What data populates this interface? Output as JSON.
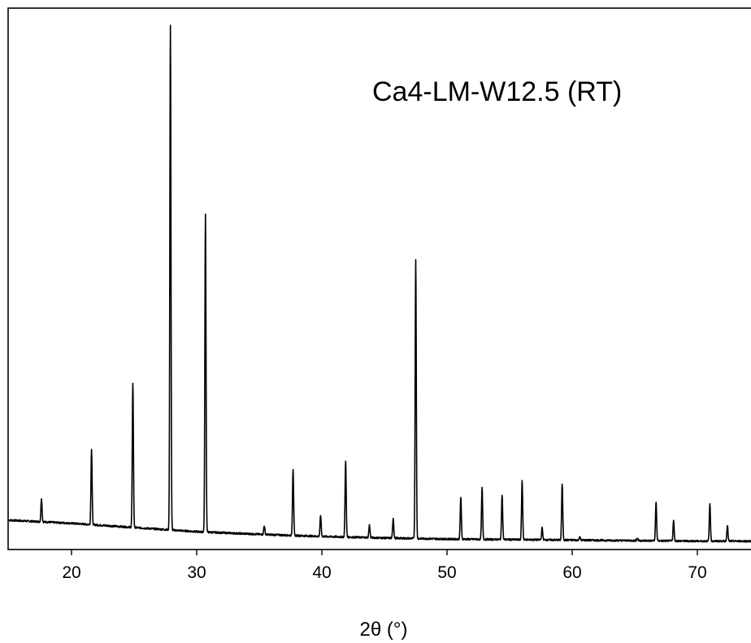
{
  "chart_data": {
    "type": "line",
    "title": "",
    "annotation": "Ca4-LM-W12.5 (RT)",
    "xlabel": "2θ (°)",
    "ylabel": "",
    "xlim": [
      15,
      74.5
    ],
    "ylim": [
      0,
      100
    ],
    "x_ticks": [
      20,
      30,
      40,
      50,
      60,
      70
    ],
    "x_tick_labels": [
      "20",
      "30",
      "40",
      "50",
      "60",
      "70"
    ],
    "grid": false,
    "legend": "none",
    "line_color": "#000000",
    "background": {
      "x": [
        15,
        20,
        25,
        30,
        35,
        40,
        45,
        50,
        55,
        60,
        65,
        70,
        74.5
      ],
      "y": [
        5.6,
        5.0,
        4.2,
        3.4,
        2.9,
        2.5,
        2.2,
        2.0,
        1.9,
        1.8,
        1.7,
        1.6,
        1.6
      ]
    },
    "peaks": [
      {
        "x": 17.6,
        "y": 4.5
      },
      {
        "x": 21.6,
        "y": 14.5
      },
      {
        "x": 24.9,
        "y": 27.6
      },
      {
        "x": 27.9,
        "y": 96.1
      },
      {
        "x": 30.7,
        "y": 60.6
      },
      {
        "x": 35.4,
        "y": 1.7
      },
      {
        "x": 37.7,
        "y": 12.7
      },
      {
        "x": 39.9,
        "y": 4.0
      },
      {
        "x": 41.9,
        "y": 14.6
      },
      {
        "x": 43.8,
        "y": 2.4
      },
      {
        "x": 45.7,
        "y": 3.8
      },
      {
        "x": 47.5,
        "y": 53.2
      },
      {
        "x": 51.1,
        "y": 8.0
      },
      {
        "x": 52.8,
        "y": 9.8
      },
      {
        "x": 54.4,
        "y": 8.6
      },
      {
        "x": 56.0,
        "y": 11.2
      },
      {
        "x": 57.6,
        "y": 2.3
      },
      {
        "x": 59.2,
        "y": 10.7
      },
      {
        "x": 60.6,
        "y": 0.7
      },
      {
        "x": 65.2,
        "y": 0.5
      },
      {
        "x": 66.7,
        "y": 7.3
      },
      {
        "x": 68.1,
        "y": 3.9
      },
      {
        "x": 71.0,
        "y": 7.1
      },
      {
        "x": 72.4,
        "y": 3.1
      }
    ]
  }
}
